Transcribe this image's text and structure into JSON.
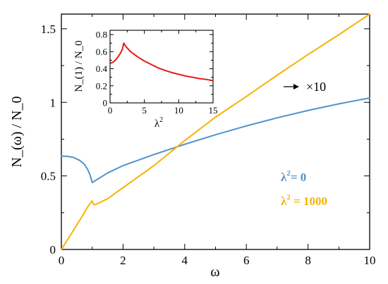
{
  "chart_data": [
    {
      "type": "line",
      "title": "",
      "xlabel": "ω",
      "ylabel": "N_(ω) / N_0",
      "xlim": [
        0,
        10
      ],
      "ylim": [
        0,
        1.6
      ],
      "x_ticks": [
        0,
        2,
        4,
        6,
        8,
        10
      ],
      "x_tick_labels": [
        "0",
        "2",
        "4",
        "6",
        "8",
        "10"
      ],
      "y_ticks": [
        0,
        0.5,
        1,
        1.5
      ],
      "y_tick_labels": [
        "0",
        "0.5",
        "1",
        "1.5"
      ],
      "series": [
        {
          "name": "λ² = 0",
          "color": "#4f94cd",
          "x": [
            0,
            0.2,
            0.4,
            0.6,
            0.75,
            0.85,
            0.92,
            0.97,
            1.0,
            1.5,
            2,
            3,
            4,
            5,
            6,
            7,
            8,
            9,
            10
          ],
          "y": [
            0.635,
            0.633,
            0.625,
            0.605,
            0.578,
            0.545,
            0.512,
            0.478,
            0.455,
            0.52,
            0.57,
            0.645,
            0.715,
            0.78,
            0.84,
            0.895,
            0.945,
            0.99,
            1.03
          ]
        },
        {
          "name": "λ² = 1000",
          "color": "#f5b400",
          "x": [
            0,
            0.3,
            0.6,
            0.9,
            1.0,
            1.05,
            1.1,
            1.2,
            1.5,
            2,
            3,
            4,
            5,
            6,
            7,
            8,
            9,
            10
          ],
          "y": [
            0,
            0.1,
            0.2,
            0.305,
            0.33,
            0.305,
            0.305,
            0.315,
            0.345,
            0.42,
            0.57,
            0.74,
            0.9,
            1.04,
            1.185,
            1.325,
            1.46,
            1.6
          ]
        }
      ],
      "annotations": [
        {
          "text": "×10",
          "x": 8.2,
          "y": 1.2,
          "arrow": true
        }
      ],
      "legend": [
        {
          "label": "λ",
          "superscript": "2",
          "suffix": "= 0",
          "color": "#4f94cd"
        },
        {
          "label": "λ",
          "superscript": "2",
          "suffix": " = 1000",
          "color": "#f5b400"
        }
      ],
      "grid": false,
      "legend_position": "right"
    },
    {
      "type": "line",
      "title": "",
      "xlabel": "λ",
      "xlabel_superscript": "2",
      "ylabel": "N_(1) / N_0",
      "xlim": [
        0,
        15
      ],
      "ylim": [
        0,
        0.85
      ],
      "x_ticks": [
        0,
        5,
        10,
        15
      ],
      "x_tick_labels": [
        "0",
        "5",
        "10",
        "15"
      ],
      "y_ticks": [
        0,
        0.2,
        0.4,
        0.6,
        0.8
      ],
      "y_tick_labels": [
        "0",
        "0.2",
        "0.4",
        "0.6",
        "0.8"
      ],
      "series": [
        {
          "color": "#e31a1c",
          "x": [
            0,
            0.5,
            1.0,
            1.5,
            1.8,
            2.0,
            2.3,
            3,
            4,
            5,
            6,
            7,
            8,
            9,
            10,
            11,
            12,
            13,
            14,
            15
          ],
          "y": [
            0.46,
            0.48,
            0.52,
            0.58,
            0.63,
            0.7,
            0.66,
            0.6,
            0.54,
            0.49,
            0.45,
            0.41,
            0.38,
            0.355,
            0.335,
            0.315,
            0.3,
            0.285,
            0.275,
            0.26
          ]
        }
      ],
      "grid": false,
      "position": "inset top-left"
    }
  ]
}
